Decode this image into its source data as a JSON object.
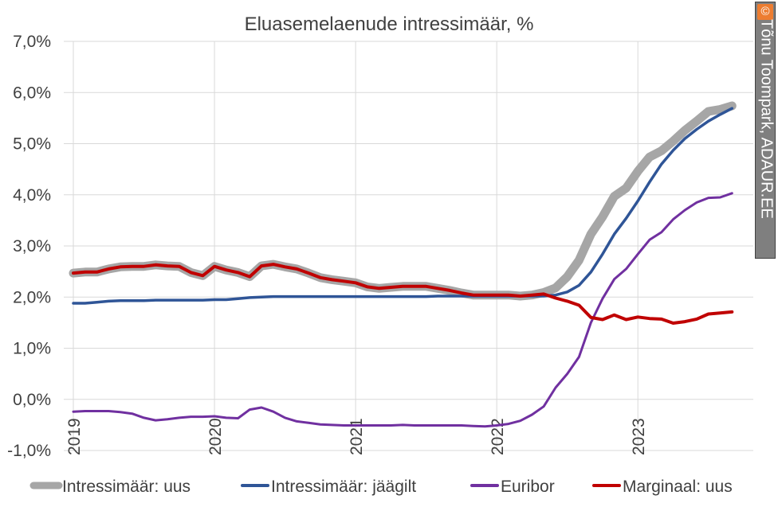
{
  "chart_data": {
    "type": "line",
    "title": "Eluasemelaenude intressimäär, %",
    "ylim": [
      -1.0,
      7.0
    ],
    "yticks": [
      -1.0,
      0.0,
      1.0,
      2.0,
      3.0,
      4.0,
      5.0,
      6.0,
      7.0
    ],
    "ytick_labels": [
      "-1,0%",
      "0,0%",
      "1,0%",
      "2,0%",
      "3,0%",
      "4,0%",
      "5,0%",
      "6,0%",
      "7,0%"
    ],
    "xlim": [
      2019.0,
      2023.75
    ],
    "xticks": [
      2019,
      2020,
      2021,
      2022,
      2023
    ],
    "xtick_labels": [
      "2019",
      "2020",
      "2021",
      "2022",
      "2023"
    ],
    "grid": "horizontal",
    "legend_position": "bottom",
    "series": [
      {
        "name": "Intressimäär: uus",
        "color": "#a6a6a6",
        "x": [
          2019.0,
          2019.083,
          2019.167,
          2019.25,
          2019.333,
          2019.417,
          2019.5,
          2019.583,
          2019.667,
          2019.75,
          2019.833,
          2019.917,
          2020.0,
          2020.083,
          2020.167,
          2020.25,
          2020.333,
          2020.417,
          2020.5,
          2020.583,
          2020.667,
          2020.75,
          2020.833,
          2020.917,
          2021.0,
          2021.083,
          2021.167,
          2021.25,
          2021.333,
          2021.417,
          2021.5,
          2021.583,
          2021.667,
          2021.75,
          2021.833,
          2021.917,
          2022.0,
          2022.083,
          2022.167,
          2022.25,
          2022.333,
          2022.417,
          2022.5,
          2022.583,
          2022.667,
          2022.75,
          2022.833,
          2022.917,
          2023.0,
          2023.083,
          2023.167,
          2023.25,
          2023.333,
          2023.417,
          2023.5,
          2023.583,
          2023.667
        ],
        "values": [
          2.47,
          2.49,
          2.49,
          2.55,
          2.59,
          2.6,
          2.6,
          2.63,
          2.61,
          2.6,
          2.48,
          2.42,
          2.6,
          2.53,
          2.48,
          2.4,
          2.61,
          2.64,
          2.59,
          2.55,
          2.47,
          2.38,
          2.34,
          2.31,
          2.28,
          2.2,
          2.17,
          2.19,
          2.21,
          2.21,
          2.21,
          2.17,
          2.13,
          2.08,
          2.04,
          2.04,
          2.04,
          2.04,
          2.02,
          2.04,
          2.09,
          2.18,
          2.4,
          2.72,
          3.23,
          3.57,
          3.97,
          4.13,
          4.46,
          4.74,
          4.86,
          5.05,
          5.26,
          5.44,
          5.63,
          5.67,
          5.74
        ]
      },
      {
        "name": "Intressimäär: jäägilt",
        "color": "#2f5597",
        "x": [
          2019.0,
          2019.083,
          2019.167,
          2019.25,
          2019.333,
          2019.417,
          2019.5,
          2019.583,
          2019.667,
          2019.75,
          2019.833,
          2019.917,
          2020.0,
          2020.083,
          2020.167,
          2020.25,
          2020.333,
          2020.417,
          2020.5,
          2020.583,
          2020.667,
          2020.75,
          2020.833,
          2020.917,
          2021.0,
          2021.083,
          2021.167,
          2021.25,
          2021.333,
          2021.417,
          2021.5,
          2021.583,
          2021.667,
          2021.75,
          2021.833,
          2021.917,
          2022.0,
          2022.083,
          2022.167,
          2022.25,
          2022.333,
          2022.417,
          2022.5,
          2022.583,
          2022.667,
          2022.75,
          2022.833,
          2022.917,
          2023.0,
          2023.083,
          2023.167,
          2023.25,
          2023.333,
          2023.417,
          2023.5,
          2023.583,
          2023.667
        ],
        "values": [
          1.88,
          1.88,
          1.9,
          1.92,
          1.93,
          1.93,
          1.93,
          1.94,
          1.94,
          1.94,
          1.94,
          1.94,
          1.95,
          1.95,
          1.97,
          1.99,
          2.0,
          2.01,
          2.01,
          2.01,
          2.01,
          2.01,
          2.01,
          2.01,
          2.01,
          2.01,
          2.01,
          2.01,
          2.01,
          2.01,
          2.01,
          2.02,
          2.02,
          2.02,
          2.02,
          2.02,
          2.02,
          2.02,
          2.02,
          2.02,
          2.02,
          2.04,
          2.1,
          2.23,
          2.49,
          2.84,
          3.23,
          3.54,
          3.88,
          4.25,
          4.6,
          4.87,
          5.1,
          5.28,
          5.44,
          5.57,
          5.69
        ]
      },
      {
        "name": "Euribor",
        "color": "#7030a0",
        "x": [
          2019.0,
          2019.083,
          2019.167,
          2019.25,
          2019.333,
          2019.417,
          2019.5,
          2019.583,
          2019.667,
          2019.75,
          2019.833,
          2019.917,
          2020.0,
          2020.083,
          2020.167,
          2020.25,
          2020.333,
          2020.417,
          2020.5,
          2020.583,
          2020.667,
          2020.75,
          2020.833,
          2020.917,
          2021.0,
          2021.083,
          2021.167,
          2021.25,
          2021.333,
          2021.417,
          2021.5,
          2021.583,
          2021.667,
          2021.75,
          2021.833,
          2021.917,
          2022.0,
          2022.083,
          2022.167,
          2022.25,
          2022.333,
          2022.417,
          2022.5,
          2022.583,
          2022.667,
          2022.75,
          2022.833,
          2022.917,
          2023.0,
          2023.083,
          2023.167,
          2023.25,
          2023.333,
          2023.417,
          2023.5,
          2023.583,
          2023.667
        ],
        "values": [
          -0.24,
          -0.23,
          -0.23,
          -0.23,
          -0.25,
          -0.28,
          -0.36,
          -0.41,
          -0.39,
          -0.36,
          -0.34,
          -0.34,
          -0.33,
          -0.36,
          -0.37,
          -0.2,
          -0.16,
          -0.24,
          -0.36,
          -0.43,
          -0.46,
          -0.49,
          -0.5,
          -0.51,
          -0.51,
          -0.51,
          -0.51,
          -0.51,
          -0.5,
          -0.51,
          -0.51,
          -0.51,
          -0.51,
          -0.51,
          -0.52,
          -0.53,
          -0.51,
          -0.48,
          -0.42,
          -0.3,
          -0.14,
          0.23,
          0.5,
          0.83,
          1.5,
          1.97,
          2.35,
          2.55,
          2.84,
          3.12,
          3.27,
          3.52,
          3.7,
          3.85,
          3.94,
          3.95,
          4.03
        ]
      },
      {
        "name": "Marginaal: uus",
        "color": "#c00000",
        "x": [
          2019.0,
          2019.083,
          2019.167,
          2019.25,
          2019.333,
          2019.417,
          2019.5,
          2019.583,
          2019.667,
          2019.75,
          2019.833,
          2019.917,
          2020.0,
          2020.083,
          2020.167,
          2020.25,
          2020.333,
          2020.417,
          2020.5,
          2020.583,
          2020.667,
          2020.75,
          2020.833,
          2020.917,
          2021.0,
          2021.083,
          2021.167,
          2021.25,
          2021.333,
          2021.417,
          2021.5,
          2021.583,
          2021.667,
          2021.75,
          2021.833,
          2021.917,
          2022.0,
          2022.083,
          2022.167,
          2022.25,
          2022.333,
          2022.417,
          2022.5,
          2022.583,
          2022.667,
          2022.75,
          2022.833,
          2022.917,
          2023.0,
          2023.083,
          2023.167,
          2023.25,
          2023.333,
          2023.417,
          2023.5,
          2023.583,
          2023.667
        ],
        "values": [
          2.47,
          2.49,
          2.49,
          2.55,
          2.59,
          2.6,
          2.6,
          2.63,
          2.61,
          2.6,
          2.48,
          2.42,
          2.6,
          2.53,
          2.48,
          2.4,
          2.61,
          2.64,
          2.59,
          2.55,
          2.47,
          2.38,
          2.34,
          2.31,
          2.28,
          2.2,
          2.17,
          2.19,
          2.21,
          2.21,
          2.21,
          2.17,
          2.13,
          2.08,
          2.04,
          2.04,
          2.04,
          2.04,
          2.02,
          2.04,
          2.06,
          1.98,
          1.92,
          1.84,
          1.6,
          1.56,
          1.65,
          1.56,
          1.61,
          1.58,
          1.57,
          1.49,
          1.52,
          1.57,
          1.67,
          1.69,
          1.71
        ]
      }
    ]
  },
  "credit": {
    "mark": "©",
    "text": "Tõnu Toompark, ADAUR.EE"
  }
}
